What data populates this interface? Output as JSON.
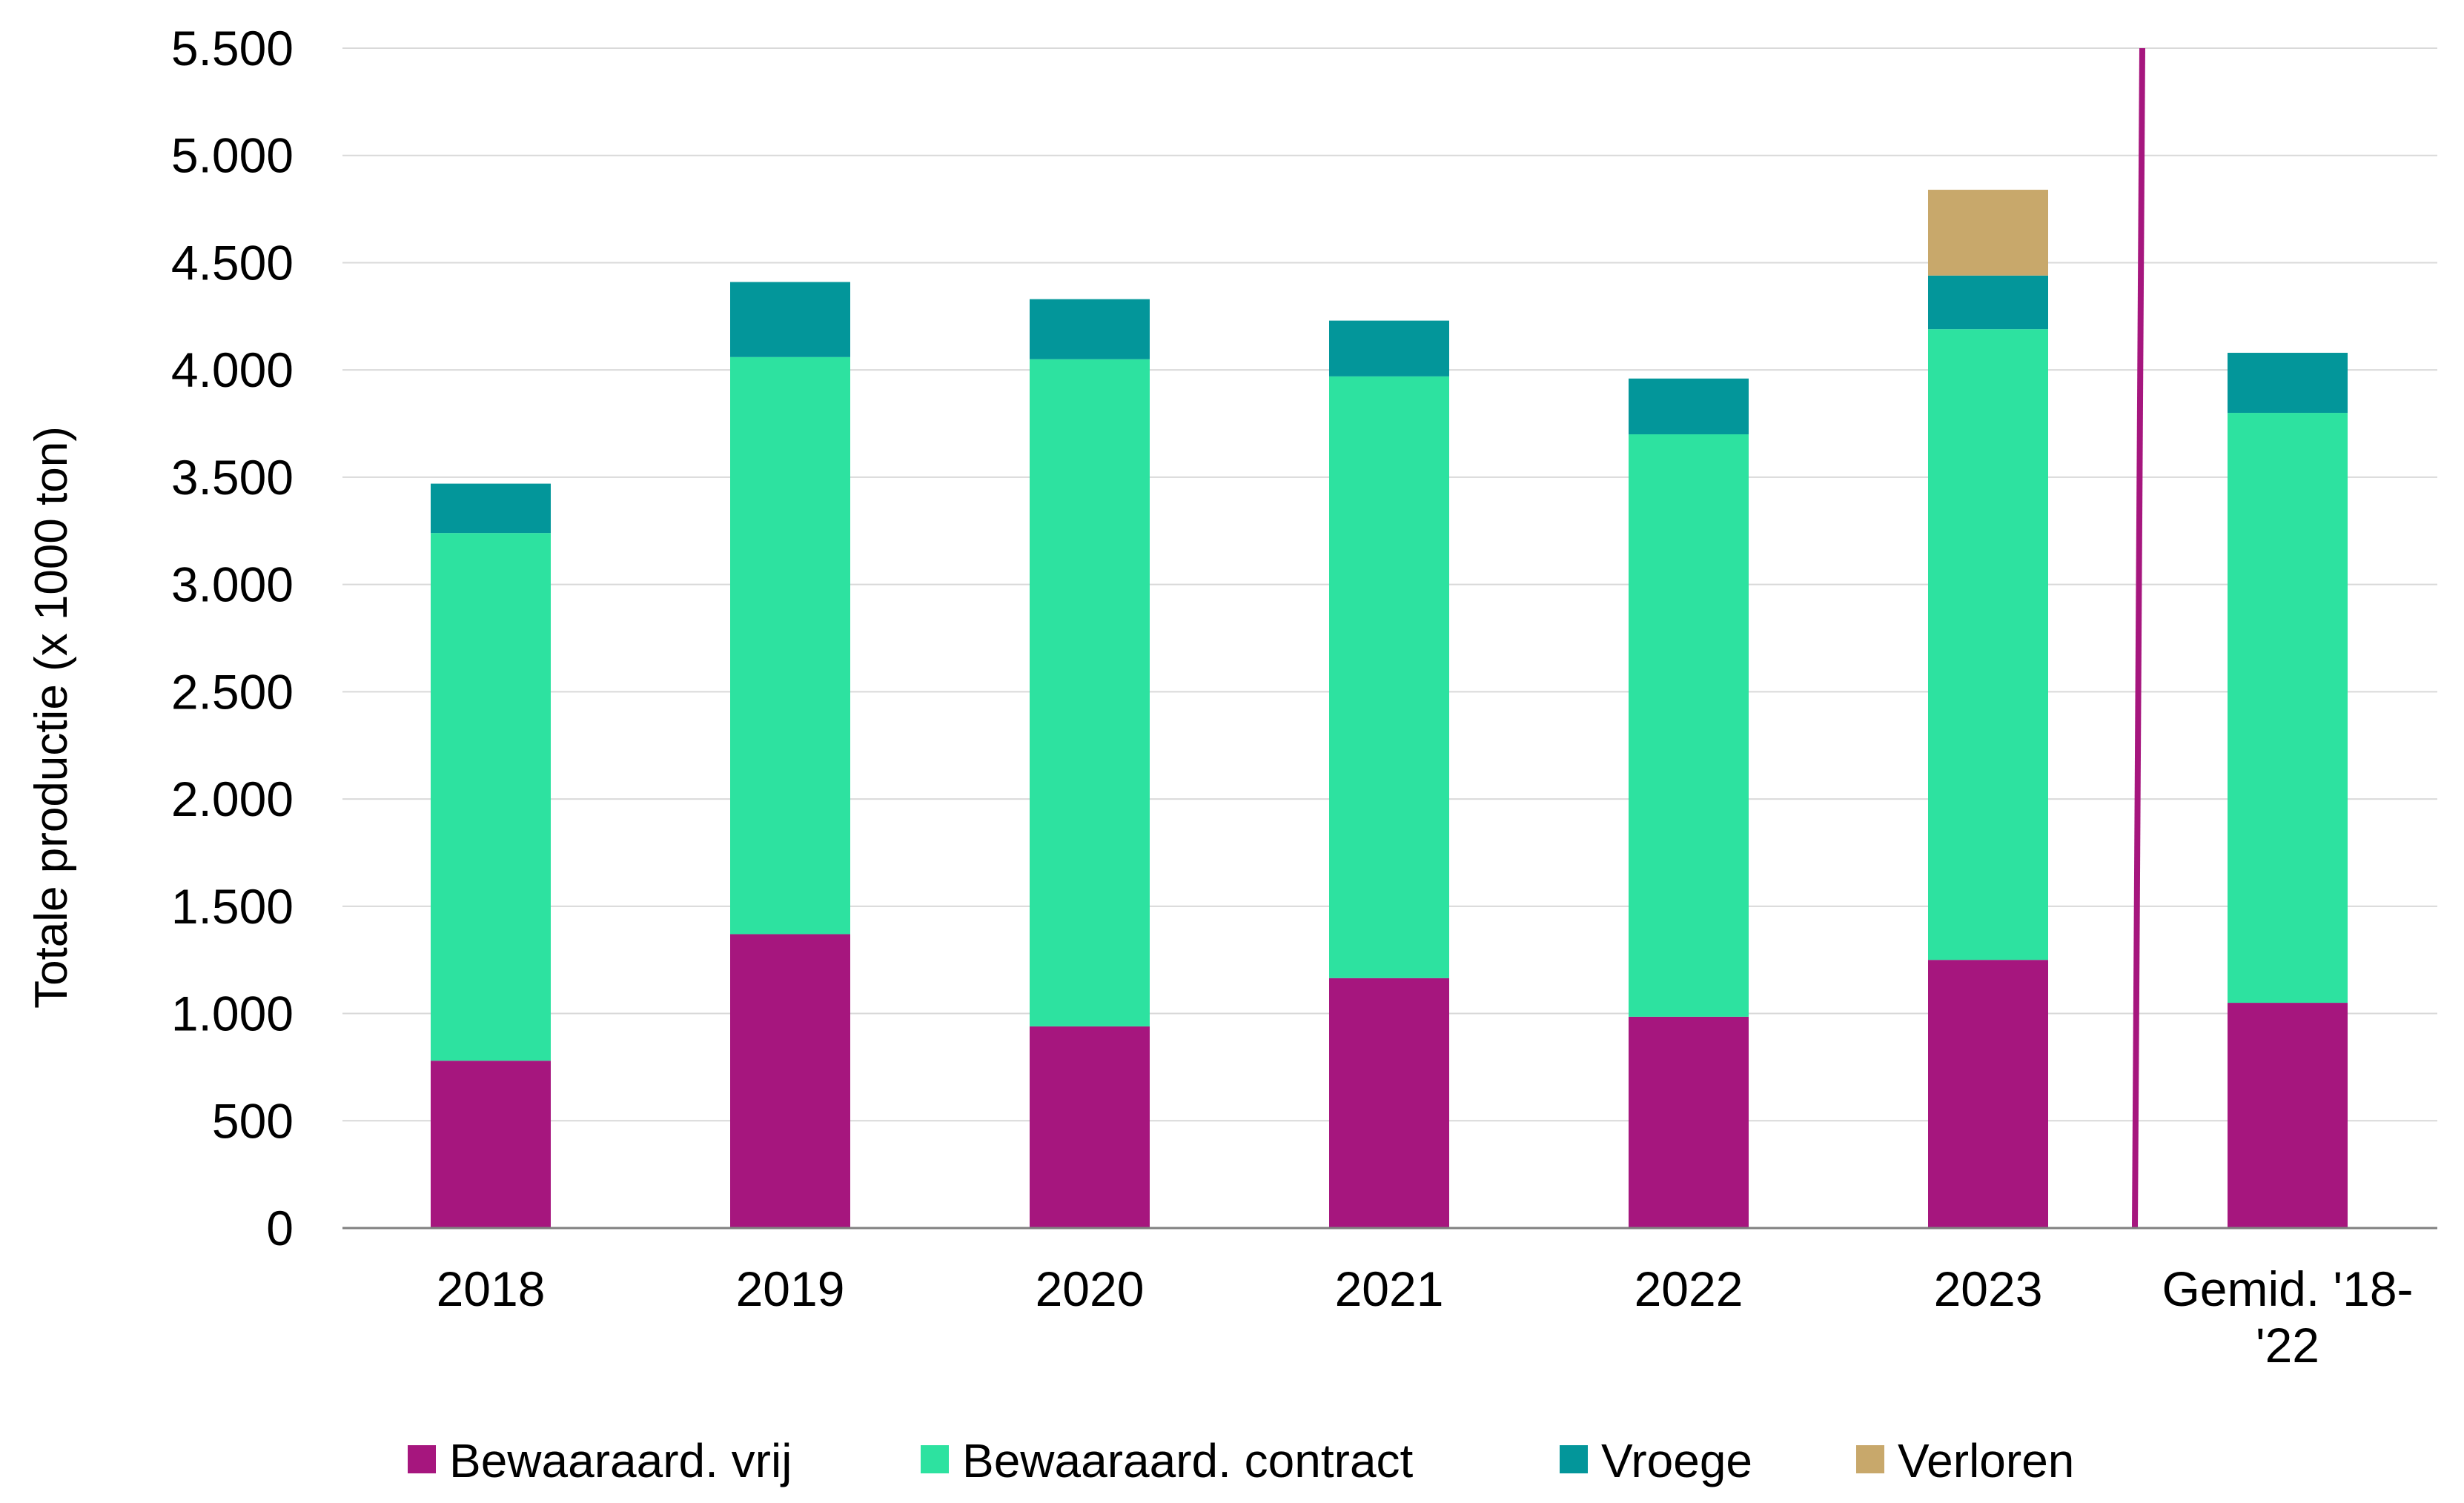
{
  "chart_data": {
    "type": "bar",
    "stacked": true,
    "categories": [
      "2018",
      "2019",
      "2020",
      "2021",
      "2022",
      "2023",
      "Gemid. '18-'22"
    ],
    "category_lines": [
      [
        "2018"
      ],
      [
        "2019"
      ],
      [
        "2020"
      ],
      [
        "2021"
      ],
      [
        "2022"
      ],
      [
        "2023"
      ],
      [
        "Gemid. '18-",
        "'22"
      ]
    ],
    "series": [
      {
        "name": "Bewaaraard. vrij",
        "color": "#a6167e",
        "values": [
          780,
          1370,
          940,
          1165,
          985,
          1250,
          1050
        ]
      },
      {
        "name": "Bewaaraard. contract",
        "color": "#2de2a0",
        "values": [
          2460,
          2690,
          3110,
          2805,
          2715,
          2940,
          2750
        ]
      },
      {
        "name": "Vroege",
        "color": "#03969a",
        "values": [
          230,
          350,
          280,
          260,
          260,
          250,
          280
        ]
      },
      {
        "name": "Verloren",
        "color": "#c8a86b",
        "values": [
          0,
          0,
          0,
          0,
          0,
          400,
          0
        ]
      }
    ],
    "ylabel": "Totale productie  (x 1000 ton)",
    "xlabel": "",
    "title": "",
    "ylim": [
      0,
      5500
    ],
    "yticks": [
      0,
      500,
      1000,
      1500,
      2000,
      2500,
      3000,
      3500,
      4000,
      4500,
      5000,
      5500
    ],
    "ytick_labels": [
      "0",
      "500",
      "1.000",
      "1.500",
      "2.000",
      "2.500",
      "3.000",
      "3.500",
      "4.000",
      "4.500",
      "5.000",
      "5.500"
    ],
    "grid": true,
    "legend_position": "bottom",
    "separator": {
      "after_category_index": 5,
      "color": "#a6167e"
    }
  }
}
